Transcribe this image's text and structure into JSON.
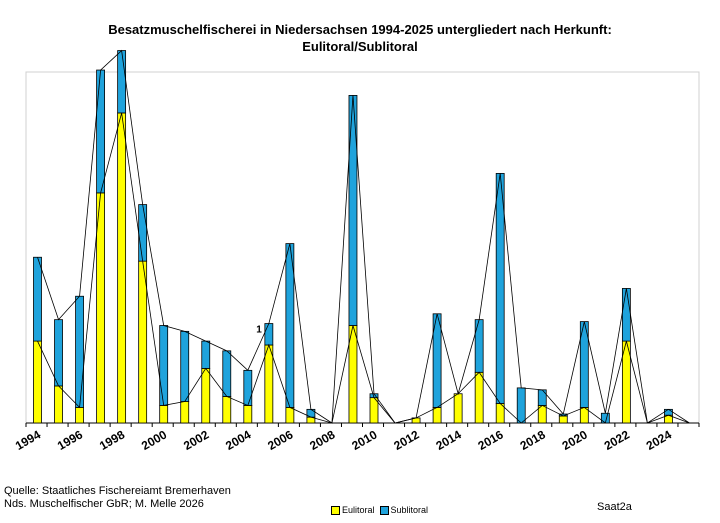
{
  "title_line1": "Besatzmuschelfischerei in Niedersachsen 1994-2025 untergliedert nach Herkunft:",
  "title_line2": "Eulitoral/Sublitoral",
  "source_line1": "Quelle: Staatliches Fischereiamt Bremerhaven",
  "source_line2": "Nds. Muschelfischer GbR; M. Melle 2026",
  "watermark": "Saat2a",
  "colors": {
    "eulitoral": "#ffff00",
    "sublitoral": "#1fa3dc",
    "line": "#000000"
  },
  "chart_data": {
    "type": "bar",
    "stacked": true,
    "years": [
      1994,
      1995,
      1996,
      1997,
      1998,
      1999,
      2000,
      2001,
      2002,
      2003,
      2004,
      2005,
      2006,
      2007,
      2008,
      2009,
      2010,
      2011,
      2012,
      2013,
      2014,
      2015,
      2016,
      2017,
      2018,
      2019,
      2020,
      2021,
      2022,
      2023,
      2024,
      2025
    ],
    "tick_labels": [
      "1994",
      "1996",
      "1998",
      "2000",
      "2002",
      "2004",
      "2006",
      "2008",
      "2010",
      "2012",
      "2014",
      "2016",
      "2018",
      "2020",
      "2022",
      "2024"
    ],
    "series": [
      {
        "name": "Eulitoral",
        "values": [
          21.0,
          9.5,
          4.0,
          59.0,
          79.5,
          41.5,
          4.5,
          5.5,
          14.0,
          6.8,
          4.5,
          20.0,
          4.0,
          1.5,
          0,
          25.0,
          6.5,
          0,
          1.3,
          4.0,
          7.5,
          13.0,
          5.0,
          0,
          4.5,
          1.8,
          4.0,
          0,
          21.0,
          0,
          2.0,
          0
        ]
      },
      {
        "name": "Sublitoral",
        "values": [
          21.5,
          17.0,
          28.5,
          31.5,
          16.0,
          14.5,
          20.5,
          18.0,
          7.0,
          11.7,
          9.0,
          5.5,
          42.0,
          2.0,
          0,
          59.0,
          1.0,
          0,
          0,
          24.0,
          0,
          13.5,
          59.0,
          9.0,
          4.0,
          0.5,
          22.0,
          2.5,
          13.5,
          0,
          1.5,
          0
        ]
      }
    ],
    "annotation": "1",
    "grid": false,
    "legend_position": "bottom"
  }
}
